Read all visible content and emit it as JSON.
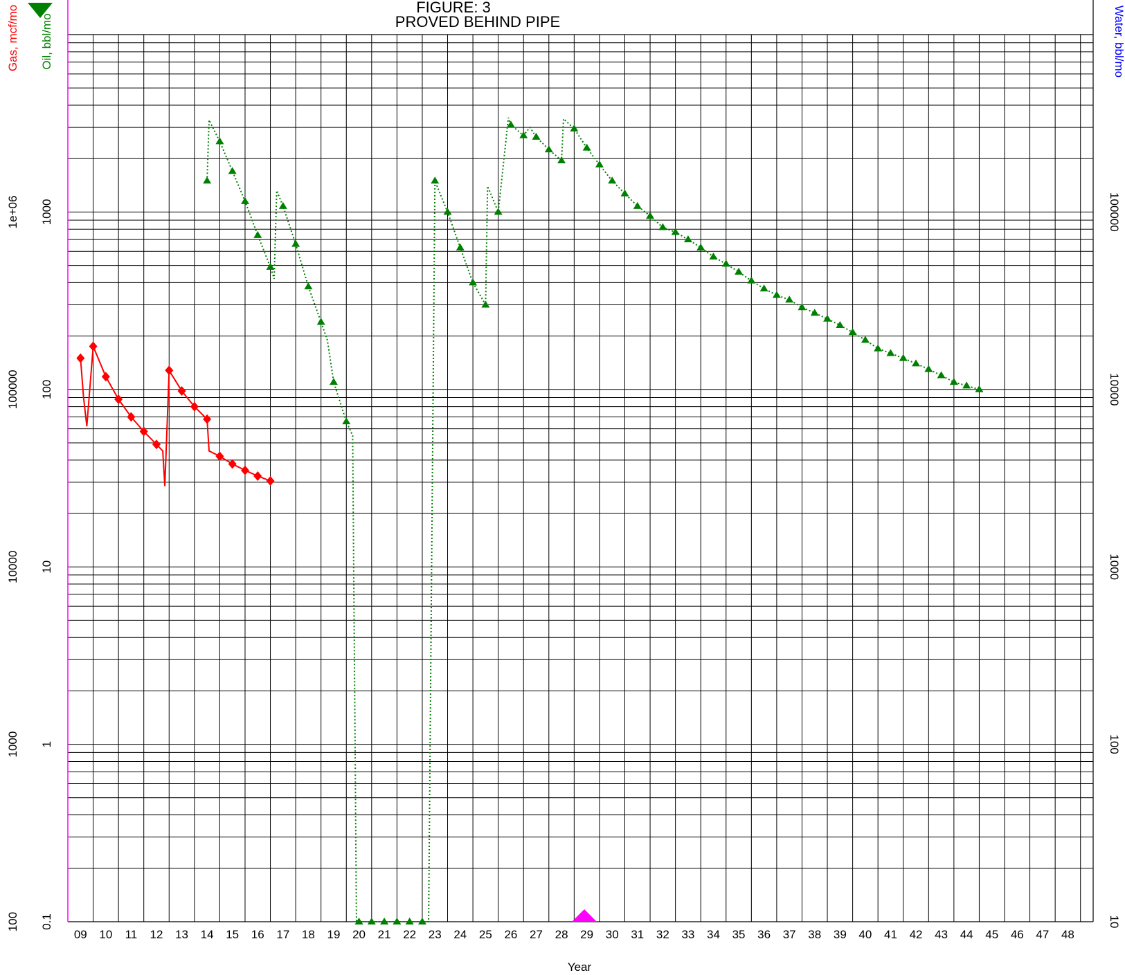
{
  "chart_data": {
    "type": "line",
    "title_line1": "FIGURE: 3",
    "title_line2": "PROVED BEHIND PIPE",
    "xlabel": "Year",
    "x_ticks": [
      "09",
      "10",
      "11",
      "12",
      "13",
      "14",
      "15",
      "16",
      "17",
      "18",
      "19",
      "20",
      "21",
      "22",
      "23",
      "24",
      "25",
      "26",
      "27",
      "28",
      "29",
      "30",
      "31",
      "32",
      "33",
      "34",
      "35",
      "36",
      "37",
      "38",
      "39",
      "40",
      "41",
      "42",
      "43",
      "44",
      "45",
      "46",
      "47",
      "48"
    ],
    "y_axes": {
      "gas": {
        "label": "Gas, mcf/mo",
        "color": "#ff0000",
        "scale": "log",
        "ylim": [
          100,
          10000000
        ],
        "ticks": [
          "100",
          "1000",
          "10000",
          "100000",
          "1e+06"
        ]
      },
      "oil": {
        "label": "Oil, bbl/mo",
        "color": "#008000",
        "scale": "log",
        "ylim": [
          0.1,
          10000
        ],
        "ticks": [
          "0.1",
          "1",
          "10",
          "100",
          "1000"
        ]
      },
      "water": {
        "label": "Water, bbl/mo",
        "color": "#0000ff",
        "scale": "log",
        "ylim": [
          10,
          1000000
        ],
        "ticks": [
          "10",
          "100",
          "1000",
          "10000",
          "100000"
        ]
      }
    },
    "grid": true,
    "series": [
      {
        "name": "Gas, mcf/mo",
        "color": "#ff0000",
        "line": "solid",
        "marker": "diamond",
        "axis": "gas",
        "x": [
          2009.0,
          2009.12,
          2009.25,
          2009.5,
          2010.0,
          2010.5,
          2011.0,
          2011.5,
          2012.0,
          2012.25,
          2012.33,
          2012.5,
          2013.0,
          2013.5,
          2014.0,
          2014.08,
          2014.5,
          2015.0,
          2015.5,
          2016.0,
          2016.5
        ],
        "y": [
          150000,
          90000,
          62000,
          175000,
          118000,
          88000,
          70000,
          58000,
          49000,
          45000,
          28500,
          128000,
          98000,
          80000,
          68000,
          45000,
          42000,
          38000,
          35000,
          32500,
          30500
        ]
      },
      {
        "name": "Oil, bbl/mo",
        "color": "#008000",
        "line": "dotted",
        "marker": "triangle",
        "axis": "oil",
        "x": [
          2014.0,
          2014.08,
          2014.5,
          2015.0,
          2015.5,
          2016.0,
          2016.5,
          2016.65,
          2016.75,
          2017.0,
          2017.5,
          2018.0,
          2018.5,
          2018.75,
          2019.0,
          2019.5,
          2019.75,
          2019.9,
          2020.0,
          2020.5,
          2021.0,
          2021.5,
          2022.0,
          2022.5,
          2022.75,
          2023.0,
          2023.5,
          2024.0,
          2024.5,
          2025.0,
          2025.08,
          2025.5,
          2025.9,
          2026.0,
          2026.5,
          2026.75,
          2027.0,
          2027.5,
          2028.0,
          2028.08,
          2028.5,
          2029.0,
          2029.5,
          2030.0,
          2030.5,
          2031.0,
          2031.5,
          2032.0,
          2032.5,
          2033.0,
          2033.5,
          2034.0,
          2034.5,
          2035.0,
          2035.5,
          2036.0,
          2036.5,
          2037.0,
          2037.5,
          2038.0,
          2038.5,
          2039.0,
          2039.5,
          2040.0,
          2040.5,
          2041.0,
          2041.5,
          2042.0,
          2042.5,
          2043.0,
          2043.5,
          2044.0,
          2044.5
        ],
        "y": [
          1500,
          3300,
          2500,
          1700,
          1150,
          740,
          490,
          420,
          1320,
          1080,
          660,
          380,
          240,
          190,
          110,
          66,
          55,
          0.1,
          0.1,
          0.1,
          0.1,
          0.1,
          0.1,
          0.1,
          0.1,
          1500,
          1000,
          630,
          400,
          300,
          1400,
          1000,
          3400,
          3100,
          2700,
          3000,
          2650,
          2250,
          1950,
          3350,
          2950,
          2300,
          1850,
          1500,
          1270,
          1080,
          950,
          820,
          770,
          700,
          630,
          560,
          510,
          460,
          410,
          370,
          340,
          320,
          290,
          270,
          250,
          230,
          210,
          190,
          170,
          160,
          150,
          140,
          130,
          120,
          110,
          105,
          100
        ],
        "marker_x": [
          2014.0,
          2014.5,
          2015.0,
          2015.5,
          2016.0,
          2016.5,
          2017.0,
          2017.5,
          2018.0,
          2018.5,
          2019.0,
          2019.5,
          2020.0,
          2020.5,
          2021.0,
          2021.5,
          2022.0,
          2022.5,
          2023.0,
          2023.5,
          2024.0,
          2024.5,
          2025.0,
          2025.5,
          2026.0,
          2026.5,
          2027.0,
          2027.5,
          2028.0,
          2028.5,
          2029.0,
          2029.5,
          2030.0,
          2030.5,
          2031.0,
          2031.5,
          2032.0,
          2032.5,
          2033.0,
          2033.5,
          2034.0,
          2034.5,
          2035.0,
          2035.5,
          2036.0,
          2036.5,
          2037.0,
          2037.5,
          2038.0,
          2038.5,
          2039.0,
          2039.5,
          2040.0,
          2040.5,
          2041.0,
          2041.5,
          2042.0,
          2042.5,
          2043.0,
          2043.5,
          2044.0,
          2044.5
        ]
      }
    ],
    "marker_flags": [
      {
        "name": "oil-axis-marker",
        "shape": "triangle-down",
        "color": "#008000",
        "position": "top-left"
      },
      {
        "name": "today-marker",
        "shape": "triangle-up",
        "color": "#ff00ff",
        "x": 2028.9
      }
    ],
    "axis_line_color": "#ff00ff"
  }
}
